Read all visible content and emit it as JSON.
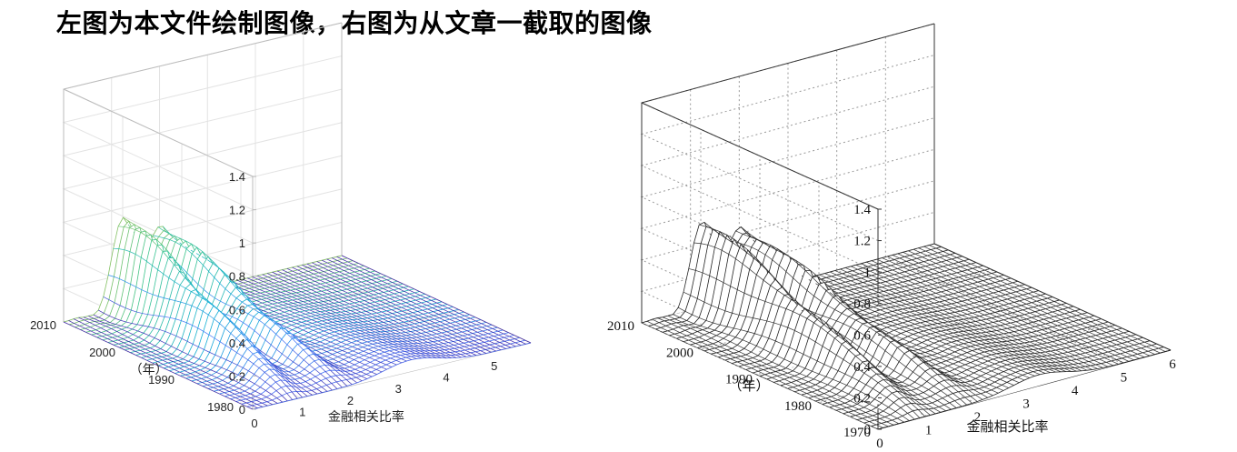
{
  "title": "左图为本文件绘制图像，右图为从文章一截取的图像",
  "chart_data": [
    {
      "type": "surface",
      "panel": "left",
      "colormap": "parula-like",
      "xlabel": "金融相关比率",
      "ylabel": "（年）",
      "x_ticks": [
        "0",
        "1",
        "2",
        "3",
        "4",
        "5"
      ],
      "y_ticks": [
        "1980",
        "1990",
        "2000",
        "2010"
      ],
      "z_ticks": [
        "0",
        "0.2",
        "0.4",
        "0.6",
        "0.8",
        "1",
        "1.2",
        "1.4"
      ],
      "xlim": [
        0,
        5.8
      ],
      "ylim": [
        1978,
        2010
      ],
      "zlim": [
        0,
        1.4
      ],
      "grid": true
    },
    {
      "type": "surface",
      "panel": "right",
      "colormap": "black wireframe",
      "xlabel": "金融相关比率",
      "ylabel": "（年）",
      "x_ticks": [
        "0",
        "1",
        "2",
        "3",
        "4",
        "5",
        "6"
      ],
      "y_ticks": [
        "1970",
        "1980",
        "1990",
        "2000",
        "2010"
      ],
      "z_ticks": [
        "0",
        "0.2",
        "0.4",
        "0.6",
        "0.8",
        "1",
        "1.2",
        "1.4"
      ],
      "xlim": [
        0,
        6
      ],
      "ylim": [
        1970,
        2010
      ],
      "zlim": [
        0,
        1.4
      ],
      "grid": true
    }
  ]
}
